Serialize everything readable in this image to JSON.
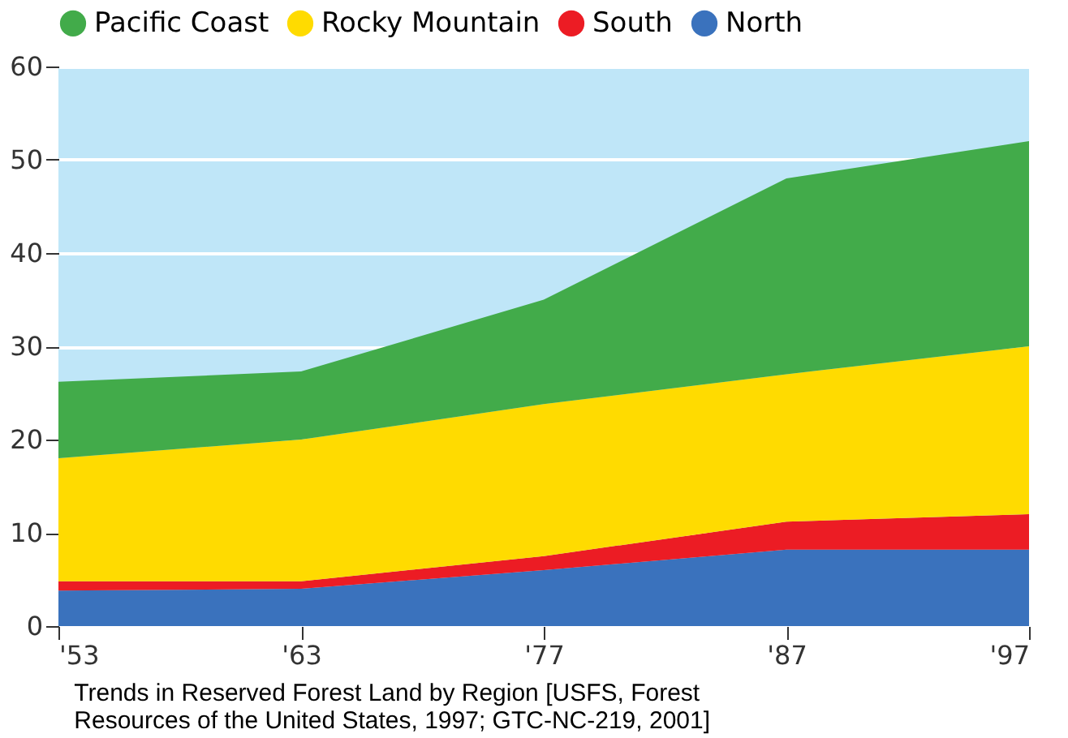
{
  "chart_data": {
    "type": "area",
    "stacked": true,
    "categories": [
      "'53",
      "'63",
      "'77",
      "'87",
      "'97"
    ],
    "series": [
      {
        "name": "North",
        "color": "#3a72bd",
        "values": [
          3.8,
          4,
          6,
          8.2,
          8.2
        ]
      },
      {
        "name": "South",
        "color": "#ec1c24",
        "values": [
          1,
          0.8,
          1.5,
          3,
          3.8
        ]
      },
      {
        "name": "Rocky Mountain",
        "color": "#ffdb00",
        "values": [
          13.2,
          15.2,
          16.3,
          15.8,
          18
        ]
      },
      {
        "name": "Pacific Coast",
        "color": "#42ab4a",
        "values": [
          8.2,
          7.3,
          11.2,
          21,
          22
        ]
      }
    ],
    "ylim": [
      0,
      60
    ],
    "yticks": [
      0,
      10,
      20,
      30,
      40,
      50,
      60
    ],
    "grid": "y",
    "legend": "top",
    "annotations": [
      "Trends in Reserved Forest Land by Region [USFS, Forest Resources of the United States, 1997; GTC-NC-219, 2001]"
    ]
  }
}
